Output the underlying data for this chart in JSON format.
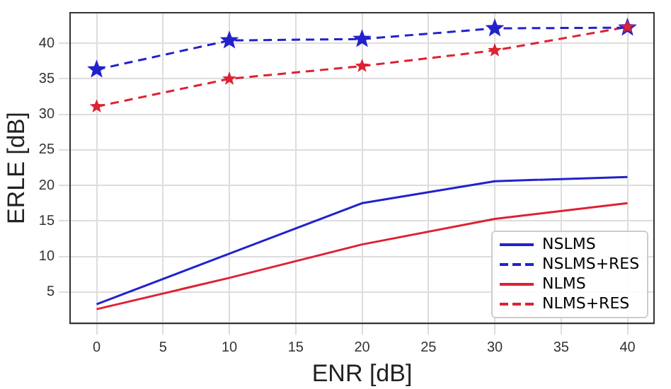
{
  "chart_data": {
    "type": "line",
    "xlabel": "ENR [dB]",
    "ylabel": "ERLE [dB]",
    "x": [
      0,
      10,
      20,
      30,
      40
    ],
    "series": [
      {
        "name": "NSLMS",
        "color": "#2222cc",
        "values": [
          3.3,
          10.4,
          17.5,
          20.6,
          21.2
        ],
        "marker": "none",
        "line_style": "solid"
      },
      {
        "name": "NSLMS+RES",
        "color": "#2222cc",
        "values": [
          36.3,
          40.4,
          40.6,
          42.1,
          42.2
        ],
        "marker": "star",
        "line_style": "dashed"
      },
      {
        "name": "NLMS",
        "color": "#dd2233",
        "values": [
          2.6,
          7.0,
          11.7,
          15.3,
          17.5
        ],
        "marker": "none",
        "line_style": "solid"
      },
      {
        "name": "NLMS+RES",
        "color": "#dd2233",
        "values": [
          31.1,
          35.0,
          36.8,
          39.0,
          42.3
        ],
        "marker": "star",
        "line_style": "dashed"
      }
    ],
    "xlim": [
      -2,
      42
    ],
    "xticks": [
      0,
      5,
      10,
      15,
      20,
      25,
      30,
      35,
      40
    ],
    "ylim": [
      0.6,
      44.3
    ],
    "yticks": [
      5,
      10,
      15,
      20,
      25,
      30,
      35,
      40
    ],
    "grid": true,
    "legend": "bottom right"
  }
}
